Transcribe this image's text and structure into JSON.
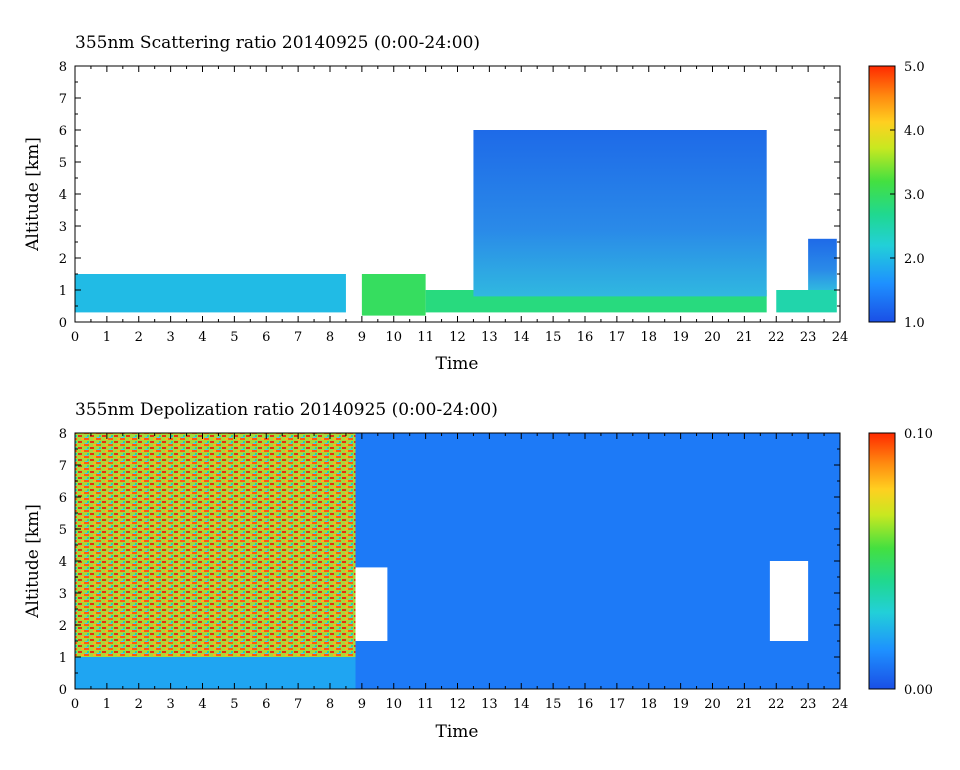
{
  "chart_data": [
    {
      "type": "heatmap",
      "title": "355nm Scattering ratio  20140925 (0:00-24:00)",
      "xlabel": "Time",
      "ylabel": "Altitude [km]",
      "xlim": [
        0,
        24
      ],
      "ylim": [
        0,
        8
      ],
      "x_ticks": [
        "0",
        "1",
        "2",
        "3",
        "4",
        "5",
        "6",
        "7",
        "8",
        "9",
        "10",
        "11",
        "12",
        "13",
        "14",
        "15",
        "16",
        "17",
        "18",
        "19",
        "20",
        "21",
        "22",
        "23",
        "24"
      ],
      "y_ticks": [
        "0",
        "1",
        "2",
        "3",
        "4",
        "5",
        "6",
        "7",
        "8"
      ],
      "colorbar": {
        "min": 1.0,
        "max": 5.0,
        "tick_labels": [
          "1.0",
          "2.0",
          "3.0",
          "4.0",
          "5.0"
        ],
        "tick_values": [
          1,
          2,
          3,
          4,
          5
        ]
      },
      "description_regions": [
        {
          "x": [
            0,
            8.5
          ],
          "y": [
            0.3,
            1.5
          ],
          "value": 2.0
        },
        {
          "x": [
            9.0,
            11.0
          ],
          "y": [
            0.2,
            1.5
          ],
          "value": 3.0
        },
        {
          "x": [
            11.0,
            21.7
          ],
          "y": [
            0.3,
            1.0
          ],
          "value": 2.8
        },
        {
          "x": [
            12.5,
            21.7
          ],
          "y": [
            0.8,
            6.0
          ],
          "value": 1.5
        },
        {
          "x": [
            22.0,
            23.9
          ],
          "y": [
            0.3,
            1.0
          ],
          "value": 2.5
        },
        {
          "x": [
            23.0,
            23.9
          ],
          "y": [
            1.0,
            2.6
          ],
          "value": 1.5
        }
      ]
    },
    {
      "type": "heatmap",
      "title": "355nm Depolization ratio  20140925 (0:00-24:00)",
      "xlabel": "Time",
      "ylabel": "Altitude [km]",
      "xlim": [
        0,
        24
      ],
      "ylim": [
        0,
        8
      ],
      "x_ticks": [
        "0",
        "1",
        "2",
        "3",
        "4",
        "5",
        "6",
        "7",
        "8",
        "9",
        "10",
        "11",
        "12",
        "13",
        "14",
        "15",
        "16",
        "17",
        "18",
        "19",
        "20",
        "21",
        "22",
        "23",
        "24"
      ],
      "y_ticks": [
        "0",
        "1",
        "2",
        "3",
        "4",
        "5",
        "6",
        "7",
        "8"
      ],
      "colorbar": {
        "min": 0.0,
        "max": 0.1,
        "tick_labels": [
          "0.00",
          "0.10"
        ],
        "tick_values": [
          0.0,
          0.1
        ]
      },
      "description_regions": [
        {
          "x": [
            0,
            8.8
          ],
          "y": [
            1.0,
            8.0
          ],
          "value": 0.07
        },
        {
          "x": [
            0,
            8.8
          ],
          "y": [
            0.0,
            1.0
          ],
          "value": 0.02
        },
        {
          "x": [
            8.8,
            24
          ],
          "y": [
            0.0,
            8.0
          ],
          "value": 0.01
        },
        {
          "x": [
            8.8,
            9.8
          ],
          "y": [
            1.5,
            3.8
          ],
          "value": "white"
        },
        {
          "x": [
            21.8,
            23.0
          ],
          "y": [
            1.5,
            4.0
          ],
          "value": "white"
        }
      ]
    }
  ]
}
